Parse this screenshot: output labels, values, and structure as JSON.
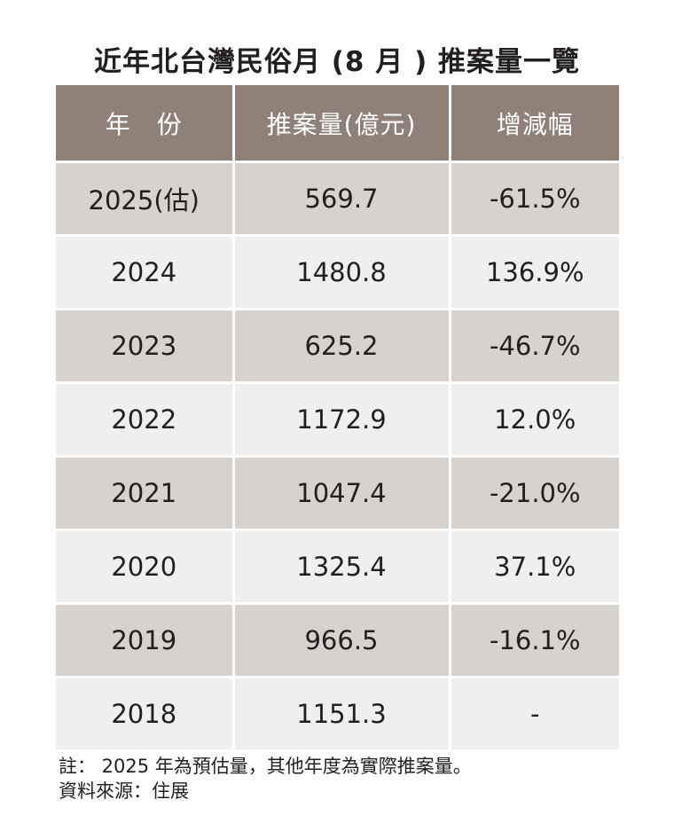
{
  "title": "近年北台灣民俗月 (8 月 ) 推案量一覽",
  "table": {
    "headers": [
      "年　份",
      "推案量(億元)",
      "增減幅"
    ],
    "rows": [
      {
        "year": "2025(估)",
        "amount": "569.7",
        "change": "-61.5%"
      },
      {
        "year": "2024",
        "amount": "1480.8",
        "change": "136.9%"
      },
      {
        "year": "2023",
        "amount": "625.2",
        "change": "-46.7%"
      },
      {
        "year": "2022",
        "amount": "1172.9",
        "change": "12.0%"
      },
      {
        "year": "2021",
        "amount": "1047.4",
        "change": "-21.0%"
      },
      {
        "year": "2020",
        "amount": "1325.4",
        "change": "37.1%"
      },
      {
        "year": "2019",
        "amount": "966.5",
        "change": "-16.1%"
      },
      {
        "year": "2018",
        "amount": "1151.3",
        "change": "-"
      }
    ]
  },
  "notes": {
    "note": "註： 2025 年為預估量，其他年度為實際推案量。",
    "source": "資料來源：住展"
  },
  "colors": {
    "header_bg": "#8f8178",
    "row_shade": "#d8d2ce",
    "row_light": "#f1efee"
  }
}
